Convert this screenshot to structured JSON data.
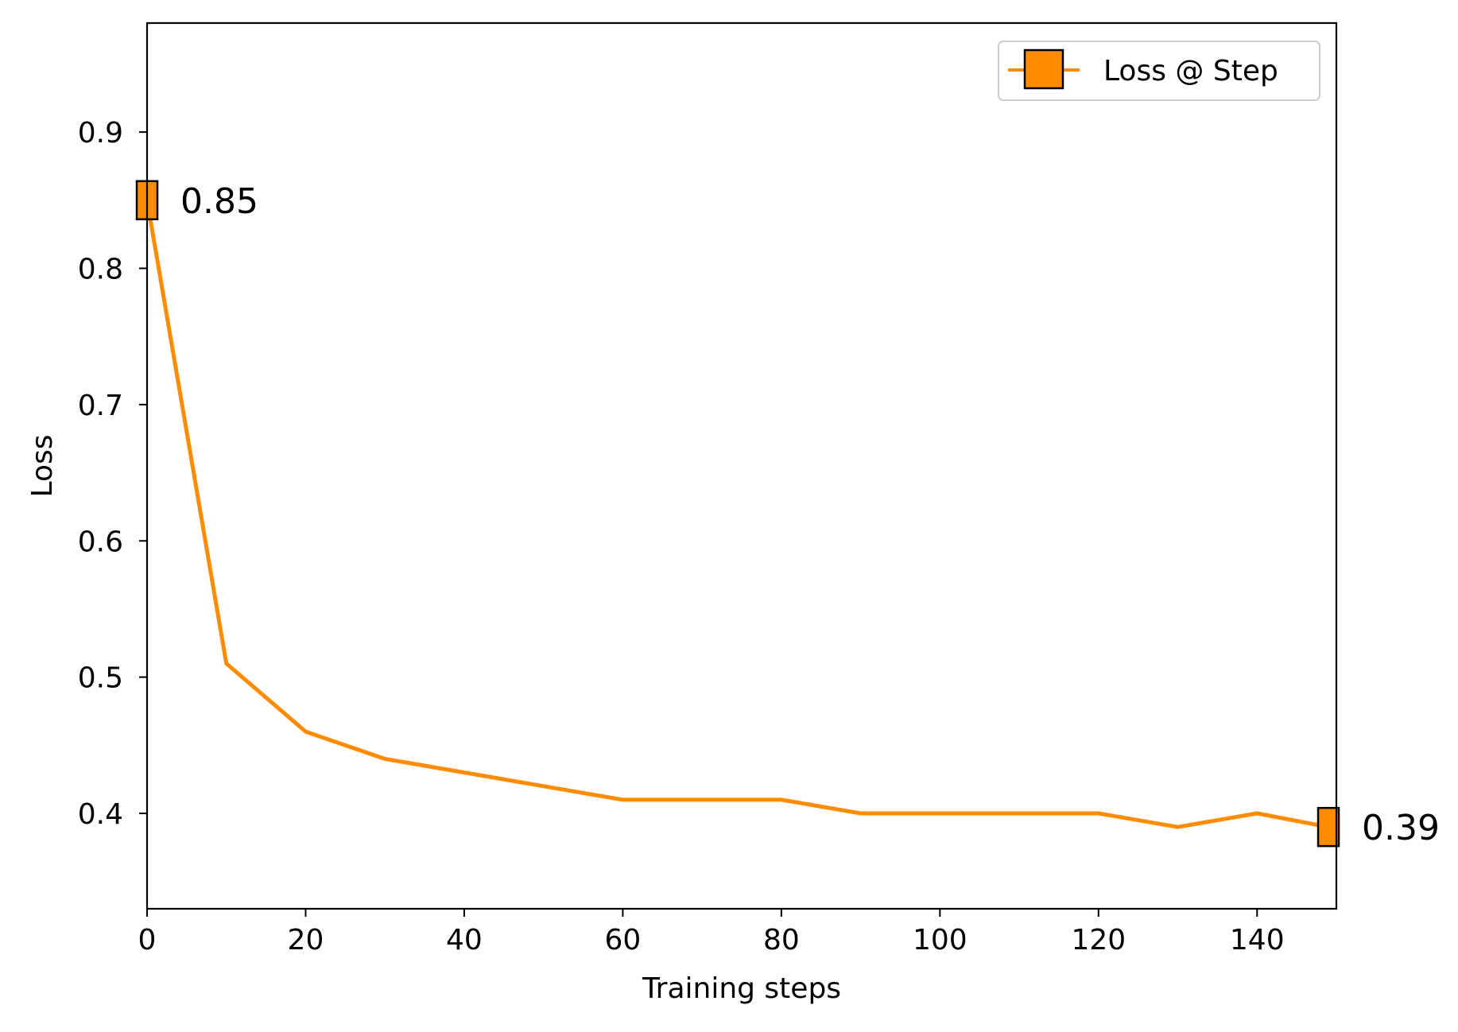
{
  "chart_data": {
    "type": "line",
    "title": "",
    "xlabel": "Training steps",
    "ylabel": "Loss",
    "xlim": [
      0,
      150
    ],
    "ylim": [
      0.33,
      0.98
    ],
    "xticks": [
      0,
      20,
      40,
      60,
      80,
      100,
      120,
      140
    ],
    "yticks": [
      0.4,
      0.5,
      0.6,
      0.7,
      0.8,
      0.9
    ],
    "grid": false,
    "legend_position": "top-right",
    "series": [
      {
        "name": "Loss @ Step",
        "color": "#ff8c00",
        "marker": "square",
        "x": [
          0,
          10,
          20,
          30,
          40,
          50,
          60,
          70,
          80,
          90,
          100,
          110,
          120,
          130,
          140,
          149
        ],
        "y": [
          0.85,
          0.51,
          0.46,
          0.44,
          0.43,
          0.42,
          0.41,
          0.41,
          0.41,
          0.4,
          0.4,
          0.4,
          0.4,
          0.39,
          0.4,
          0.39
        ]
      }
    ],
    "marked_points": [
      {
        "x": 0,
        "y": 0.85,
        "label": "0.85"
      },
      {
        "x": 149,
        "y": 0.39,
        "label": "0.39"
      }
    ]
  }
}
